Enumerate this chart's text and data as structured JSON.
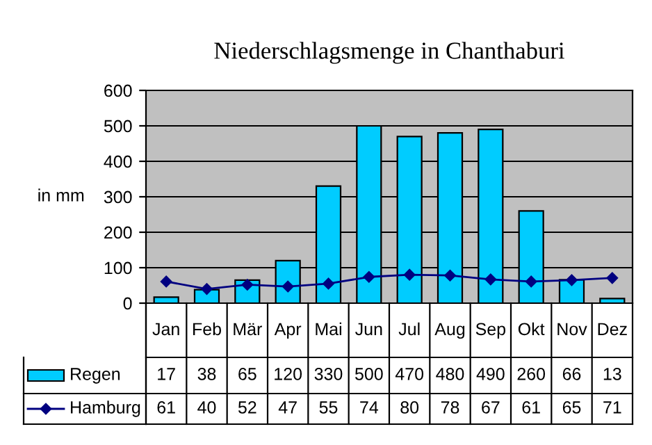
{
  "chart_data": {
    "type": "bar",
    "title": "Niederschlagsmenge in Chanthaburi",
    "ylabel": "in mm",
    "categories": [
      "Jan",
      "Feb",
      "Mär",
      "Apr",
      "Mai",
      "Jun",
      "Jul",
      "Aug",
      "Sep",
      "Okt",
      "Nov",
      "Dez"
    ],
    "series": [
      {
        "name": "Regen",
        "color": "#00ccff",
        "values": [
          17,
          38,
          65,
          120,
          330,
          500,
          470,
          480,
          490,
          260,
          66,
          13
        ]
      },
      {
        "name": "Hamburg",
        "type": "line",
        "color": "#000080",
        "values": [
          61,
          40,
          52,
          47,
          55,
          74,
          80,
          78,
          67,
          61,
          65,
          71
        ]
      }
    ],
    "ylim": [
      0,
      600
    ],
    "yticks": [
      0,
      100,
      200,
      300,
      400,
      500,
      600
    ],
    "grid": "y",
    "legend": "bottom",
    "data_labels": true,
    "marker": "diamond",
    "line_style": "solid"
  }
}
